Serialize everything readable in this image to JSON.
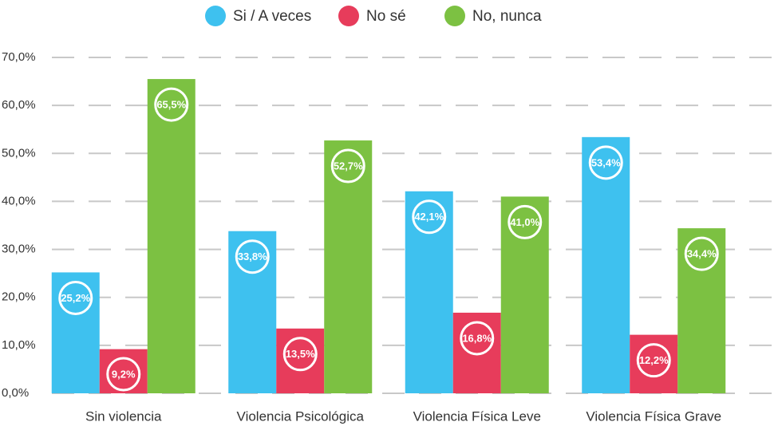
{
  "chart_data": {
    "type": "bar",
    "categories": [
      "Sin violencia",
      "Violencia Psicológica",
      "Violencia Física Leve",
      "Violencia Física Grave"
    ],
    "series": [
      {
        "name": "Si / A veces",
        "color": "#3ec1ef",
        "values": [
          25.2,
          33.8,
          42.1,
          53.4
        ],
        "value_labels": [
          "25,2%",
          "33,8%",
          "42,1%",
          "53,4%"
        ]
      },
      {
        "name": "No sé",
        "color": "#e73c5b",
        "values": [
          9.2,
          13.5,
          16.8,
          12.2
        ],
        "value_labels": [
          "9,2%",
          "13,5%",
          "16,8%",
          "12,2%"
        ]
      },
      {
        "name": "No, nunca",
        "color": "#7cc142",
        "values": [
          65.5,
          52.7,
          41.0,
          34.4
        ],
        "value_labels": [
          "65,5%",
          "52,7%",
          "41,0%",
          "34,4%"
        ]
      }
    ],
    "ylim": [
      0,
      70
    ],
    "yticks": [
      {
        "value": 0,
        "label": "0,0%"
      },
      {
        "value": 10,
        "label": "10,0%"
      },
      {
        "value": 20,
        "label": "20,0%"
      },
      {
        "value": 30,
        "label": "30,0%"
      },
      {
        "value": 40,
        "label": "40,0%"
      },
      {
        "value": 50,
        "label": "50,0%"
      },
      {
        "value": 60,
        "label": "60,0%"
      },
      {
        "value": 70,
        "label": "70,0%"
      }
    ],
    "grid": true,
    "legend": "top"
  }
}
